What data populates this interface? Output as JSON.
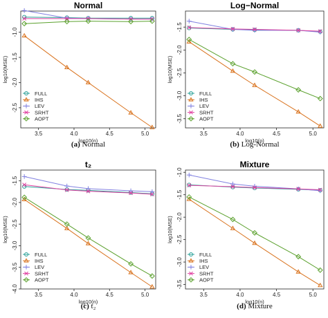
{
  "series_style": [
    {
      "name": "FULL",
      "color": "#2aa198",
      "marker": "circle"
    },
    {
      "name": "IHS",
      "color": "#d9731f",
      "marker": "triangle"
    },
    {
      "name": "LEV",
      "color": "#8080e0",
      "marker": "plus"
    },
    {
      "name": "SRHT",
      "color": "#e040a0",
      "marker": "x"
    },
    {
      "name": "AOPT",
      "color": "#5aa02c",
      "marker": "diamond"
    }
  ],
  "chart_data": [
    {
      "type": "line",
      "title": "Normal",
      "caption_label": "(a)",
      "caption_text": "Normal",
      "xlabel": "log10(n)",
      "ylabel": "log10(MSE)",
      "xlim": [
        3.25,
        5.15
      ],
      "ylim": [
        -2.9,
        -0.58
      ],
      "xticks": [
        "3.5",
        "4.0",
        "4.5",
        "5.0"
      ],
      "yticks": [
        "-1.0",
        "-1.5",
        "-2.0",
        "-2.5"
      ],
      "legend": "bottom-left",
      "x": [
        3.3,
        3.9,
        4.2,
        4.8,
        5.1
      ],
      "series": [
        {
          "name": "FULL",
          "values": [
            -0.7,
            -0.71,
            -0.72,
            -0.72,
            -0.72
          ]
        },
        {
          "name": "IHS",
          "values": [
            -1.07,
            -1.7,
            -2.0,
            -2.6,
            -2.89
          ]
        },
        {
          "name": "LEV",
          "values": [
            -0.57,
            -0.72,
            -0.73,
            -0.74,
            -0.74
          ]
        },
        {
          "name": "SRHT",
          "values": [
            -0.73,
            -0.73,
            -0.73,
            -0.74,
            -0.74
          ]
        },
        {
          "name": "AOPT",
          "values": [
            -0.83,
            -0.79,
            -0.78,
            -0.79,
            -0.78
          ]
        }
      ]
    },
    {
      "type": "line",
      "title": "Log−Normal",
      "caption_label": "(b)",
      "caption_text": "Log-Normal",
      "xlabel": "log10(n)",
      "ylabel": "log10(MSE)",
      "xlim": [
        3.25,
        5.15
      ],
      "ylim": [
        -3.7,
        -1.15
      ],
      "xticks": [
        "3.5",
        "4.0",
        "4.5",
        "5.0"
      ],
      "yticks": [
        "-1.5",
        "-2.0",
        "-2.5",
        "-3.0",
        "-3.5"
      ],
      "legend": "bottom-left",
      "x": [
        3.3,
        3.9,
        4.2,
        4.8,
        5.1
      ],
      "series": [
        {
          "name": "FULL",
          "values": [
            -1.52,
            -1.55,
            -1.56,
            -1.57,
            -1.6
          ]
        },
        {
          "name": "IHS",
          "values": [
            -1.82,
            -2.46,
            -2.77,
            -3.35,
            -3.66
          ]
        },
        {
          "name": "LEV",
          "values": [
            -1.37,
            -1.55,
            -1.57,
            -1.57,
            -1.61
          ]
        },
        {
          "name": "SRHT",
          "values": [
            -1.51,
            -1.54,
            -1.55,
            -1.57,
            -1.59
          ]
        },
        {
          "name": "AOPT",
          "values": [
            -1.77,
            -2.3,
            -2.48,
            -2.87,
            -3.06
          ]
        }
      ]
    },
    {
      "type": "line",
      "title": "t₂",
      "caption_label": "(c)",
      "caption_text": "t₂",
      "xlabel": "log10(n)",
      "ylabel": "log10(MSE)",
      "xlim": [
        3.25,
        5.15
      ],
      "ylim": [
        -4.0,
        -1.25
      ],
      "xticks": [
        "3.5",
        "4.0",
        "4.5",
        "5.0"
      ],
      "yticks": [
        "-1.5",
        "-2.0",
        "-2.5",
        "-3.0",
        "-3.5",
        "-4.0"
      ],
      "legend": "bottom-left",
      "x": [
        3.3,
        3.9,
        4.2,
        4.8,
        5.1
      ],
      "series": [
        {
          "name": "FULL",
          "values": [
            -1.63,
            -1.7,
            -1.72,
            -1.77,
            -1.8
          ]
        },
        {
          "name": "IHS",
          "values": [
            -1.93,
            -2.6,
            -2.95,
            -3.62,
            -3.95
          ]
        },
        {
          "name": "LEV",
          "values": [
            -1.4,
            -1.62,
            -1.68,
            -1.73,
            -1.75
          ]
        },
        {
          "name": "SRHT",
          "values": [
            -1.59,
            -1.71,
            -1.74,
            -1.78,
            -1.81
          ]
        },
        {
          "name": "AOPT",
          "values": [
            -1.88,
            -2.5,
            -2.82,
            -3.42,
            -3.7
          ]
        }
      ]
    },
    {
      "type": "line",
      "title": "Mixture",
      "caption_label": "(d)",
      "caption_text": "Mixture",
      "xlabel": "log10(n)",
      "ylabel": "log10(MSE)",
      "xlim": [
        3.25,
        5.15
      ],
      "ylim": [
        -3.6,
        -0.95
      ],
      "xticks": [
        "3.5",
        "4.0",
        "4.5",
        "5.0"
      ],
      "yticks": [
        "-1.0",
        "-1.5",
        "-2.0",
        "-2.5",
        "-3.0",
        "-3.5"
      ],
      "legend": "bottom-left",
      "x": [
        3.3,
        3.9,
        4.2,
        4.8,
        5.1
      ],
      "series": [
        {
          "name": "FULL",
          "values": [
            -1.28,
            -1.33,
            -1.35,
            -1.38,
            -1.4
          ]
        },
        {
          "name": "IHS",
          "values": [
            -1.6,
            -2.25,
            -2.58,
            -3.22,
            -3.52
          ]
        },
        {
          "name": "LEV",
          "values": [
            -1.06,
            -1.26,
            -1.31,
            -1.37,
            -1.41
          ]
        },
        {
          "name": "SRHT",
          "values": [
            -1.29,
            -1.32,
            -1.34,
            -1.37,
            -1.39
          ]
        },
        {
          "name": "AOPT",
          "values": [
            -1.55,
            -2.05,
            -2.35,
            -2.88,
            -3.18
          ]
        }
      ]
    }
  ]
}
